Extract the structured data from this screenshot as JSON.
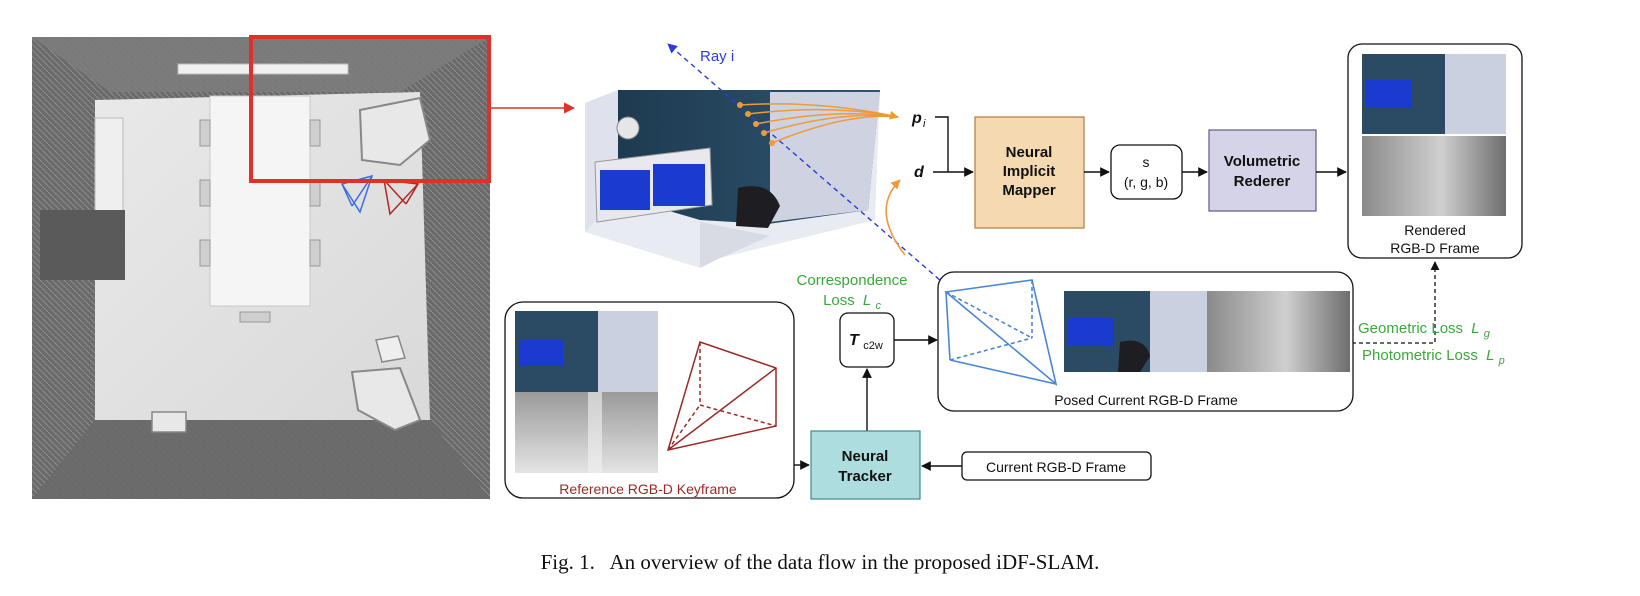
{
  "labels": {
    "ray": "Ray i",
    "p": "p",
    "p_sub": "i",
    "d": "d",
    "mapper": [
      "Neural",
      "Implicit",
      "Mapper"
    ],
    "s_line1": "s",
    "s_line2": "(r, g, b)",
    "renderer": [
      "Volumetric",
      "Rederer"
    ],
    "rendered": [
      "Rendered",
      "RGB-D Frame"
    ],
    "corr": "Correspondence",
    "corr_loss": "Loss",
    "corr_sym": "L",
    "corr_sub": "c",
    "T": "T",
    "T_sub": "c2w",
    "posed": "Posed Current RGB-D Frame",
    "geo": "Geometric Loss",
    "geo_sym": "L",
    "geo_sub": "g",
    "photo": "Photometric Loss",
    "photo_sym": "L",
    "photo_sub": "p",
    "reference": "Reference RGB-D Keyframe",
    "tracker": [
      "Neural",
      "Tracker"
    ],
    "current": "Current RGB-D Frame"
  },
  "caption": "Fig. 1.   An overview of the data flow in the proposed iDF-SLAM.",
  "colors": {
    "mapper_fill": "#f5d9b0",
    "mapper_stroke": "#b07a3c",
    "renderer_fill": "#d5d3e8",
    "renderer_stroke": "#5e5a85",
    "tracker_fill": "#aedde0",
    "tracker_stroke": "#3d8a91",
    "ray_blue": "#2b3be0",
    "orange": "#ef9a3a",
    "loss_green": "#3aa83a",
    "red": "#e0302a",
    "dark_red": "#9a2a24",
    "camera_blue": "#4a86d8"
  }
}
